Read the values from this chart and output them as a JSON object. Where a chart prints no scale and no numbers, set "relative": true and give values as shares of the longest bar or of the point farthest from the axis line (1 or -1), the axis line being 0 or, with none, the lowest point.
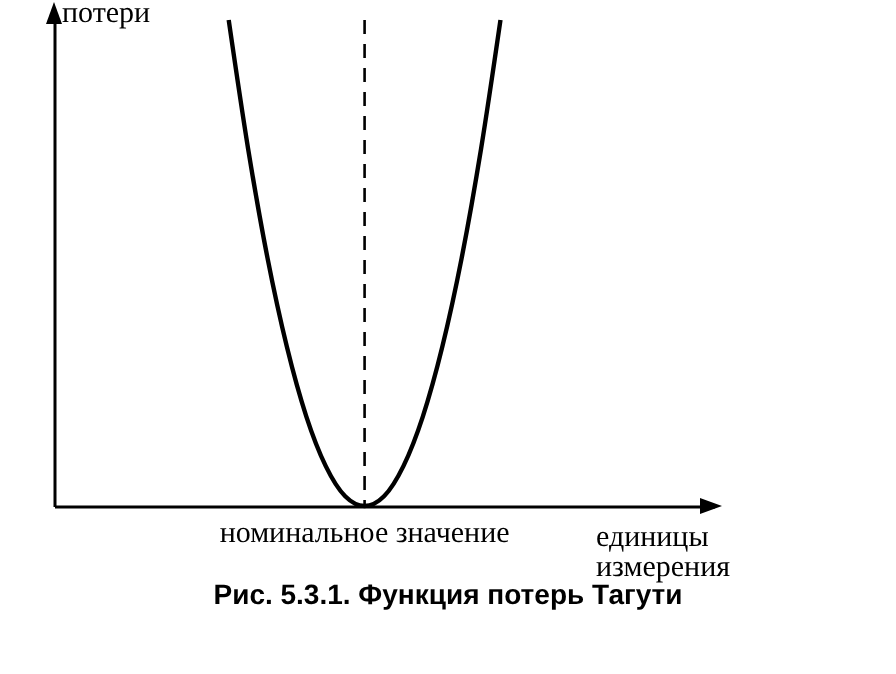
{
  "chart_data": {
    "type": "line",
    "relative": true,
    "title": "Рис. 5.3.1. Функция потерь Тагути",
    "xlabel": "единицы измерения",
    "ylabel": "потери",
    "categories": [
      null,
      null,
      null,
      null,
      null,
      null,
      null,
      null,
      null,
      null,
      null,
      null,
      null,
      null,
      null,
      null,
      null,
      null,
      null,
      null,
      null,
      null,
      null,
      null,
      null,
      null,
      null,
      null,
      null,
      null,
      null,
      null,
      null,
      null,
      null
    ],
    "series": [
      {
        "color": "#000000",
        "values": [
          null,
          null,
          null,
          null,
          null,
          null,
          null,
          null,
          null,
          1,
          0.735,
          0.51,
          0.327,
          0.184,
          0.082,
          0.02,
          0,
          0.02,
          0.082,
          0.184,
          0.327,
          0.51,
          0.735,
          1,
          null,
          null,
          null,
          null,
          null,
          null,
          null,
          null,
          null,
          null,
          null
        ]
      }
    ],
    "ref_lines": [
      {
        "axis": "x",
        "label": "номинальное значение",
        "line_style": "dashed",
        "color": "#000000"
      }
    ],
    "grid": false,
    "marker": "none",
    "line_style": "solid"
  }
}
